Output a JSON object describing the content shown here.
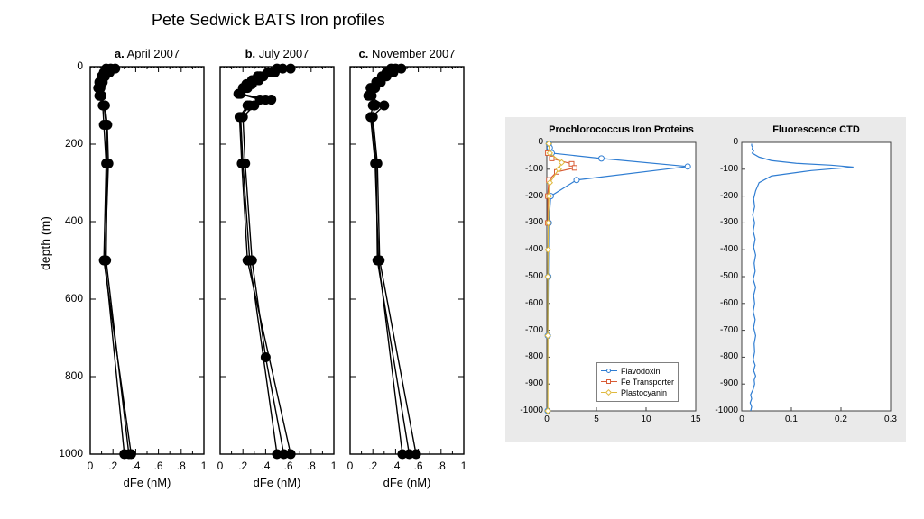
{
  "main_title": "Pete Sedwick BATS Iron profiles",
  "left_figure": {
    "ylabel": "depth (m)",
    "ylim": [
      0,
      1000
    ],
    "yticks": [
      0,
      200,
      400,
      600,
      800,
      1000
    ],
    "xlabel": "dFe (nM)",
    "xlim": [
      0,
      1
    ],
    "xticks": [
      0,
      0.2,
      0.4,
      0.6,
      0.8,
      1
    ],
    "xtick_labels": [
      "0",
      ".2",
      ".4",
      ".6",
      ".8",
      "1"
    ],
    "background": "#ffffff",
    "axis_color": "#000000",
    "line_color": "#000000",
    "marker_color": "#000000",
    "marker_size": 5.5,
    "line_width": 1.4,
    "title_fontsize": 13,
    "tick_fontsize": 12,
    "panels": [
      {
        "label_bold": "a.",
        "label_plain": " April 2007",
        "series": [
          {
            "depth": [
              5,
              15,
              25,
              40,
              55,
              75,
              100,
              150,
              250,
              500,
              1000
            ],
            "dfe": [
              0.18,
              0.17,
              0.13,
              0.11,
              0.09,
              0.1,
              0.12,
              0.14,
              0.15,
              0.14,
              0.34
            ]
          },
          {
            "depth": [
              5,
              15,
              25,
              40,
              55,
              75,
              100,
              150,
              250,
              500,
              1000
            ],
            "dfe": [
              0.22,
              0.15,
              0.12,
              0.1,
              0.08,
              0.09,
              0.13,
              0.15,
              0.16,
              0.13,
              0.3
            ]
          },
          {
            "depth": [
              5,
              15,
              25,
              40,
              55,
              75,
              100,
              150,
              250,
              500,
              1000
            ],
            "dfe": [
              0.14,
              0.12,
              0.1,
              0.08,
              0.07,
              0.08,
              0.11,
              0.12,
              0.14,
              0.12,
              0.36
            ]
          }
        ]
      },
      {
        "label_bold": "b.",
        "label_plain": " July 2007",
        "series": [
          {
            "depth": [
              5,
              15,
              25,
              35,
              45,
              55,
              70,
              85,
              100,
              130,
              250,
              500,
              750,
              1000
            ],
            "dfe": [
              0.62,
              0.48,
              0.38,
              0.34,
              0.28,
              0.24,
              0.16,
              0.45,
              0.3,
              0.2,
              0.22,
              0.28,
              0.4,
              0.56
            ]
          },
          {
            "depth": [
              5,
              15,
              25,
              35,
              45,
              55,
              70,
              85,
              100,
              130,
              250,
              500,
              1000
            ],
            "dfe": [
              0.55,
              0.44,
              0.35,
              0.3,
              0.26,
              0.22,
              0.18,
              0.4,
              0.26,
              0.18,
              0.2,
              0.26,
              0.5
            ]
          },
          {
            "depth": [
              5,
              15,
              25,
              35,
              45,
              55,
              70,
              85,
              100,
              130,
              250,
              500,
              1000
            ],
            "dfe": [
              0.5,
              0.42,
              0.33,
              0.28,
              0.23,
              0.2,
              0.17,
              0.35,
              0.24,
              0.17,
              0.19,
              0.24,
              0.62
            ]
          }
        ]
      },
      {
        "label_bold": "c.",
        "label_plain": " November 2007",
        "series": [
          {
            "depth": [
              5,
              15,
              25,
              40,
              55,
              75,
              100,
              130,
              250,
              500,
              1000
            ],
            "dfe": [
              0.4,
              0.35,
              0.3,
              0.25,
              0.2,
              0.18,
              0.22,
              0.2,
              0.24,
              0.26,
              0.58
            ]
          },
          {
            "depth": [
              5,
              15,
              25,
              40,
              55,
              75,
              100,
              130,
              250,
              500,
              1000
            ],
            "dfe": [
              0.45,
              0.38,
              0.32,
              0.27,
              0.22,
              0.19,
              0.2,
              0.18,
              0.22,
              0.25,
              0.46
            ]
          },
          {
            "depth": [
              5,
              15,
              25,
              40,
              55,
              75,
              100,
              130,
              250,
              500,
              1000
            ],
            "dfe": [
              0.36,
              0.32,
              0.28,
              0.23,
              0.18,
              0.16,
              0.3,
              0.19,
              0.23,
              0.24,
              0.52
            ]
          }
        ]
      }
    ]
  },
  "right_figure": {
    "bg_color": "#eaeaea",
    "plot_bg": "#ffffff",
    "box_color": "#404040",
    "tick_fontsize": 10,
    "ylim": [
      -1000,
      0
    ],
    "yticks": [
      0,
      -100,
      -200,
      -300,
      -400,
      -500,
      -600,
      -700,
      -800,
      -900,
      -1000
    ],
    "panels": [
      {
        "title": "Prochlorococcus Iron Proteins",
        "xlim": [
          0,
          15
        ],
        "xticks": [
          0,
          5,
          10,
          15
        ],
        "legend": [
          {
            "label": "Flavodoxin",
            "color": "#2f7dd2",
            "marker": "circle"
          },
          {
            "label": "Fe Transporter",
            "color": "#d85c36",
            "marker": "square"
          },
          {
            "label": "Plastocyanin",
            "color": "#e0b93e",
            "marker": "diamond"
          }
        ],
        "series": [
          {
            "name": "Flavodoxin",
            "color": "#2f7dd2",
            "marker": "circle",
            "x": [
              0.2,
              0.3,
              0.5,
              5.5,
              14.2,
              3.0,
              0.4,
              0.2,
              0.15,
              0.1,
              0.08
            ],
            "y": [
              -5,
              -20,
              -40,
              -60,
              -90,
              -140,
              -200,
              -300,
              -500,
              -720,
              -1000
            ]
          },
          {
            "name": "Fe Transporter",
            "color": "#d85c36",
            "marker": "square",
            "x": [
              0.1,
              0.5,
              2.5,
              2.8,
              1.0,
              0.2,
              0.1,
              0.1
            ],
            "y": [
              -40,
              -60,
              -80,
              -95,
              -110,
              -140,
              -200,
              -300
            ]
          },
          {
            "name": "Plastocyanin",
            "color": "#e0b93e",
            "marker": "diamond",
            "x": [
              0.2,
              0.3,
              1.5,
              1.2,
              0.3,
              0.2,
              0.15,
              0.12,
              0.1,
              0.1,
              0.1
            ],
            "y": [
              -5,
              -40,
              -75,
              -100,
              -150,
              -200,
              -300,
              -400,
              -500,
              -720,
              -1000
            ]
          }
        ]
      },
      {
        "title": "Fluorescence CTD",
        "xlim": [
          0,
          0.3
        ],
        "xticks": [
          0,
          0.1,
          0.2,
          0.3
        ],
        "series": [
          {
            "name": "Fluorescence",
            "color": "#2f7dd2",
            "x": [
              0.02,
              0.02,
              0.022,
              0.021,
              0.024,
              0.021,
              0.035,
              0.06,
              0.11,
              0.18,
              0.225,
              0.14,
              0.06,
              0.035,
              0.028,
              0.024,
              0.026,
              0.022,
              0.026,
              0.023,
              0.027,
              0.024,
              0.028,
              0.025,
              0.027,
              0.023,
              0.028,
              0.024,
              0.026,
              0.023,
              0.027,
              0.024,
              0.028,
              0.025,
              0.026,
              0.023,
              0.027,
              0.024,
              0.028,
              0.025,
              0.026,
              0.023,
              0.018,
              0.02,
              0.017,
              0.02,
              0.018
            ],
            "y": [
              -5,
              -12,
              -18,
              -25,
              -32,
              -40,
              -55,
              -68,
              -78,
              -85,
              -92,
              -105,
              -125,
              -150,
              -180,
              -210,
              -240,
              -270,
              -300,
              -330,
              -360,
              -390,
              -420,
              -450,
              -480,
              -510,
              -540,
              -570,
              -600,
              -630,
              -660,
              -690,
              -720,
              -750,
              -780,
              -810,
              -830,
              -850,
              -870,
              -885,
              -900,
              -920,
              -940,
              -955,
              -970,
              -985,
              -1000
            ]
          }
        ]
      }
    ]
  }
}
